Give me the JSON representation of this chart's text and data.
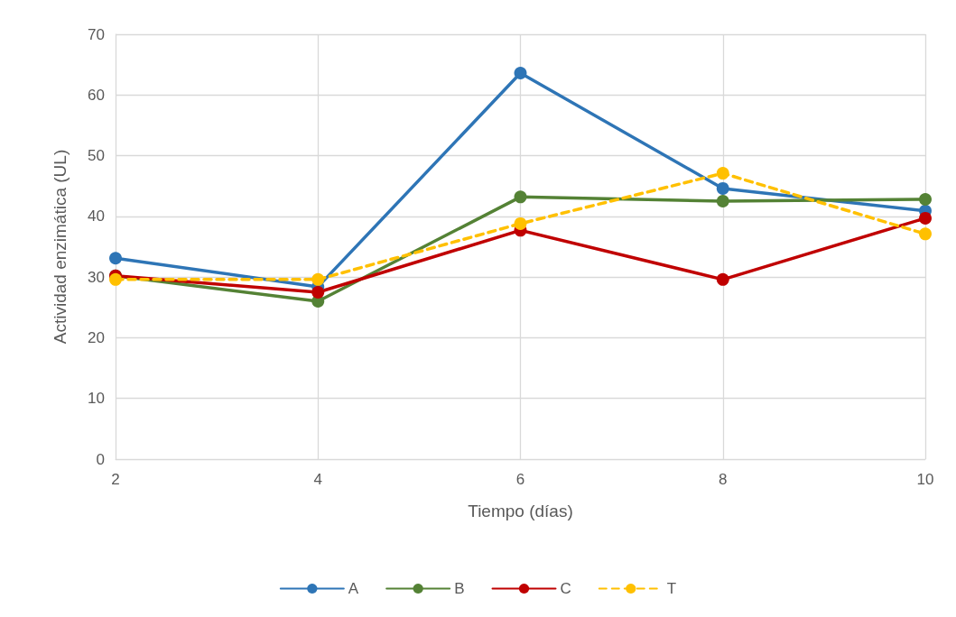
{
  "chart_data": {
    "type": "line",
    "xlabel": "Tiempo (días)",
    "ylabel": "Actividad enzimática (UL)",
    "x": [
      2,
      4,
      6,
      8,
      10
    ],
    "series": [
      {
        "name": "A",
        "color": "#2e75b6",
        "values": [
          33.1,
          28.4,
          63.6,
          44.6,
          40.9
        ]
      },
      {
        "name": "B",
        "color": "#548235",
        "values": [
          30.2,
          26.0,
          43.2,
          42.5,
          42.8
        ]
      },
      {
        "name": "C",
        "color": "#c00000",
        "values": [
          30.2,
          27.5,
          37.7,
          29.6,
          39.7
        ]
      },
      {
        "name": "T",
        "color": "#ffc000",
        "values": [
          29.6,
          29.6,
          38.8,
          47.1,
          37.1
        ],
        "line_style": "dashed"
      }
    ],
    "xlim": [
      2,
      10
    ],
    "xticks": [
      2,
      4,
      6,
      8,
      10
    ],
    "ylim": [
      0,
      70
    ],
    "yticks": [
      0,
      10,
      20,
      30,
      40,
      50,
      60,
      70
    ],
    "grid": true,
    "legend": "bottom",
    "marker": "circle"
  }
}
